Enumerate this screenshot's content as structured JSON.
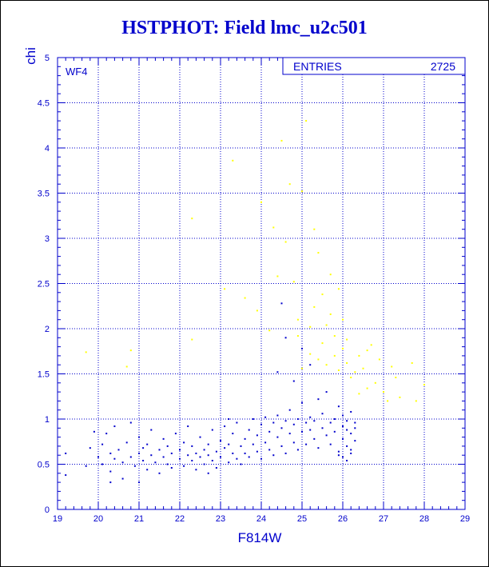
{
  "colors": {
    "primary": "#0000cc",
    "secondary": "#ffff00",
    "background": "#ffffff"
  },
  "stats": {
    "entries_label": "ENTRIES",
    "entries_value": "2725"
  },
  "chart_data": {
    "type": "scatter",
    "title": "HSTPHOT: Field lmc_u2c501",
    "xlabel": "F814W",
    "ylabel": "chi",
    "panel_label": "WF4",
    "xlim": [
      19,
      29
    ],
    "ylim": [
      0,
      5
    ],
    "grid": true,
    "x_ticks": [
      "19",
      "20",
      "21",
      "22",
      "23",
      "24",
      "25",
      "26",
      "27",
      "28",
      "29"
    ],
    "y_ticks": [
      "0",
      "0.5",
      "1",
      "1.5",
      "2",
      "2.5",
      "3",
      "3.5",
      "4",
      "4.5",
      "5"
    ],
    "series": [
      {
        "color": "#0000cc",
        "points": [
          [
            19.2,
            0.38
          ],
          [
            19.2,
            0.62
          ],
          [
            19.7,
            0.48
          ],
          [
            19.8,
            0.68
          ],
          [
            19.9,
            0.86
          ],
          [
            20.0,
            0.58
          ],
          [
            20.1,
            0.5
          ],
          [
            20.1,
            0.72
          ],
          [
            20.2,
            0.84
          ],
          [
            20.3,
            0.62
          ],
          [
            20.3,
            0.42
          ],
          [
            20.4,
            0.92
          ],
          [
            20.4,
            0.56
          ],
          [
            20.5,
            0.66
          ],
          [
            20.6,
            0.52
          ],
          [
            20.6,
            0.34
          ],
          [
            20.7,
            0.74
          ],
          [
            20.8,
            0.58
          ],
          [
            20.8,
            0.96
          ],
          [
            20.9,
            0.48
          ],
          [
            21.0,
            0.62
          ],
          [
            21.0,
            0.8
          ],
          [
            21.1,
            0.54
          ],
          [
            21.1,
            0.68
          ],
          [
            21.2,
            0.44
          ],
          [
            21.2,
            0.72
          ],
          [
            21.3,
            0.6
          ],
          [
            21.3,
            0.88
          ],
          [
            21.4,
            0.52
          ],
          [
            21.5,
            0.66
          ],
          [
            21.5,
            0.4
          ],
          [
            21.6,
            0.78
          ],
          [
            21.6,
            0.58
          ],
          [
            21.7,
            0.5
          ],
          [
            21.7,
            0.7
          ],
          [
            21.8,
            0.62
          ],
          [
            21.8,
            0.46
          ],
          [
            21.9,
            0.84
          ],
          [
            22.0,
            0.56
          ],
          [
            22.0,
            0.66
          ],
          [
            22.1,
            0.74
          ],
          [
            22.1,
            0.48
          ],
          [
            22.2,
            0.6
          ],
          [
            22.2,
            0.92
          ],
          [
            22.3,
            0.54
          ],
          [
            22.3,
            0.7
          ],
          [
            22.4,
            0.62
          ],
          [
            22.4,
            0.44
          ],
          [
            22.5,
            0.8
          ],
          [
            22.5,
            0.58
          ],
          [
            22.6,
            0.66
          ],
          [
            22.6,
            0.5
          ],
          [
            22.7,
            0.72
          ],
          [
            22.7,
            0.6
          ],
          [
            22.8,
            0.88
          ],
          [
            22.8,
            0.54
          ],
          [
            22.9,
            0.64
          ],
          [
            22.9,
            0.46
          ],
          [
            23.0,
            0.76
          ],
          [
            23.0,
            0.58
          ],
          [
            23.1,
            0.68
          ],
          [
            23.1,
            0.92
          ],
          [
            23.2,
            0.52
          ],
          [
            23.2,
            0.72
          ],
          [
            23.3,
            0.62
          ],
          [
            23.3,
            0.84
          ],
          [
            23.4,
            0.56
          ],
          [
            23.4,
            0.96
          ],
          [
            23.5,
            0.7
          ],
          [
            23.5,
            0.5
          ],
          [
            23.6,
            0.78
          ],
          [
            23.6,
            0.62
          ],
          [
            23.7,
            0.88
          ],
          [
            23.7,
            0.58
          ],
          [
            23.8,
            0.72
          ],
          [
            23.8,
            1.0
          ],
          [
            23.9,
            0.64
          ],
          [
            23.9,
            0.82
          ],
          [
            24.0,
            0.56
          ],
          [
            24.0,
            0.94
          ],
          [
            24.1,
            0.74
          ],
          [
            24.1,
            1.02
          ],
          [
            24.2,
            0.66
          ],
          [
            24.2,
            0.86
          ],
          [
            24.3,
            0.96
          ],
          [
            24.3,
            0.6
          ],
          [
            24.4,
            0.8
          ],
          [
            24.4,
            1.04
          ],
          [
            24.5,
            0.7
          ],
          [
            24.5,
            0.9
          ],
          [
            24.6,
            0.98
          ],
          [
            24.6,
            0.62
          ],
          [
            24.7,
            0.84
          ],
          [
            24.7,
            1.1
          ],
          [
            24.8,
            0.74
          ],
          [
            24.8,
            0.94
          ],
          [
            24.9,
            1.0
          ],
          [
            24.9,
            0.66
          ],
          [
            25.0,
            0.86
          ],
          [
            25.0,
            1.18
          ],
          [
            25.1,
            0.96
          ],
          [
            25.1,
            0.72
          ],
          [
            25.2,
            0.88
          ],
          [
            25.2,
            1.02
          ],
          [
            25.3,
            0.78
          ],
          [
            25.3,
            0.98
          ],
          [
            25.4,
            1.22
          ],
          [
            25.4,
            0.68
          ],
          [
            25.5,
            0.9
          ],
          [
            25.5,
            1.06
          ],
          [
            25.6,
            0.82
          ],
          [
            25.6,
            1.3
          ],
          [
            25.7,
            0.96
          ],
          [
            25.7,
            0.72
          ],
          [
            25.8,
            1.0
          ],
          [
            25.8,
            0.86
          ],
          [
            25.9,
            1.14
          ],
          [
            25.9,
            0.64
          ],
          [
            26.0,
            0.92
          ],
          [
            26.0,
            0.78
          ],
          [
            26.0,
            1.04
          ],
          [
            26.1,
            0.88
          ],
          [
            26.1,
            0.7
          ],
          [
            26.1,
            0.98
          ],
          [
            26.2,
            0.84
          ],
          [
            26.2,
            0.62
          ],
          [
            26.2,
            1.08
          ],
          [
            26.3,
            0.9
          ],
          [
            26.3,
            0.76
          ],
          [
            26.3,
            0.96
          ],
          [
            26.0,
            0.58
          ],
          [
            26.1,
            0.54
          ],
          [
            25.9,
            0.6
          ],
          [
            26.2,
            0.66
          ],
          [
            24.4,
            1.52
          ],
          [
            24.6,
            1.9
          ],
          [
            24.5,
            2.28
          ],
          [
            25.0,
            1.78
          ],
          [
            24.8,
            1.42
          ],
          [
            25.2,
            1.6
          ],
          [
            23.2,
            1.0
          ],
          [
            22.7,
            0.4
          ],
          [
            21.0,
            0.3
          ],
          [
            20.3,
            0.3
          ]
        ]
      },
      {
        "color": "#ffff00",
        "points": [
          [
            19.7,
            1.74
          ],
          [
            20.7,
            1.58
          ],
          [
            20.8,
            1.76
          ],
          [
            22.3,
            1.88
          ],
          [
            22.3,
            3.22
          ],
          [
            23.1,
            2.44
          ],
          [
            23.3,
            3.86
          ],
          [
            23.6,
            2.34
          ],
          [
            23.9,
            2.2
          ],
          [
            24.0,
            3.4
          ],
          [
            24.2,
            1.98
          ],
          [
            24.3,
            3.12
          ],
          [
            24.4,
            2.58
          ],
          [
            24.5,
            4.08
          ],
          [
            24.6,
            2.96
          ],
          [
            24.7,
            3.6
          ],
          [
            24.8,
            2.52
          ],
          [
            24.9,
            2.1
          ],
          [
            25.0,
            3.52
          ],
          [
            25.1,
            4.3
          ],
          [
            25.2,
            1.72
          ],
          [
            25.3,
            2.24
          ],
          [
            25.3,
            3.1
          ],
          [
            25.4,
            2.84
          ],
          [
            25.5,
            1.84
          ],
          [
            25.5,
            2.38
          ],
          [
            25.6,
            2.04
          ],
          [
            25.6,
            1.6
          ],
          [
            25.7,
            2.6
          ],
          [
            25.7,
            2.16
          ],
          [
            25.8,
            1.92
          ],
          [
            25.8,
            1.7
          ],
          [
            25.9,
            2.44
          ],
          [
            25.9,
            1.54
          ],
          [
            26.0,
            1.78
          ],
          [
            26.0,
            2.1
          ],
          [
            26.1,
            1.62
          ],
          [
            26.2,
            1.46
          ],
          [
            26.1,
            1.88
          ],
          [
            26.3,
            1.52
          ],
          [
            26.4,
            1.7
          ],
          [
            26.4,
            1.28
          ],
          [
            26.5,
            1.56
          ],
          [
            26.6,
            1.34
          ],
          [
            26.6,
            1.76
          ],
          [
            26.7,
            1.82
          ],
          [
            26.8,
            1.4
          ],
          [
            26.9,
            1.66
          ],
          [
            27.0,
            1.3
          ],
          [
            27.1,
            1.2
          ],
          [
            27.2,
            1.58
          ],
          [
            27.3,
            1.46
          ],
          [
            27.4,
            1.24
          ],
          [
            27.7,
            1.62
          ],
          [
            27.8,
            1.2
          ],
          [
            28.0,
            1.38
          ],
          [
            25.0,
            1.56
          ],
          [
            24.9,
            1.92
          ],
          [
            25.2,
            2.02
          ],
          [
            25.4,
            1.66
          ]
        ]
      }
    ]
  }
}
